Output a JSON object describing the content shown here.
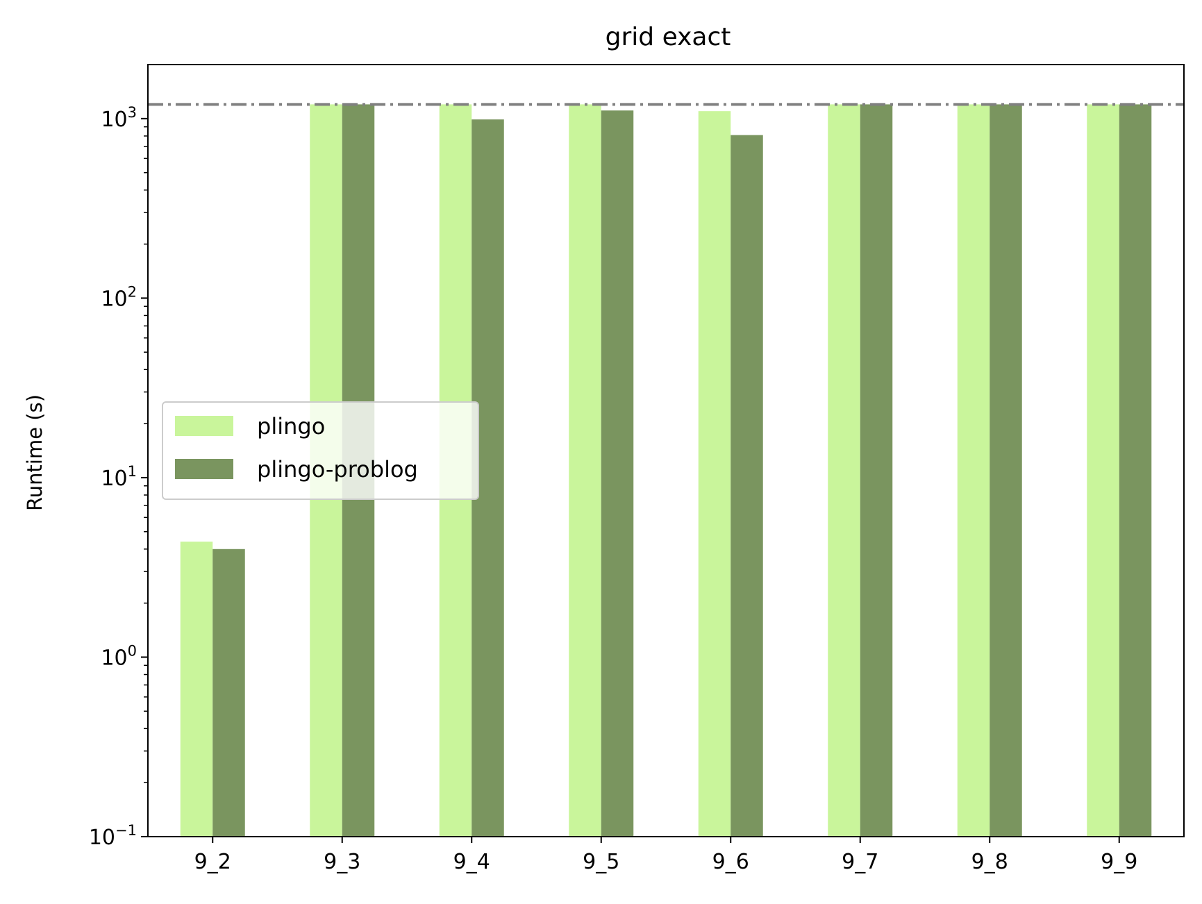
{
  "chart_data": {
    "type": "bar",
    "title": "grid exact",
    "xlabel": "",
    "ylabel": "Runtime (s)",
    "yscale": "log",
    "ylim": [
      0.1,
      2000
    ],
    "yticks": [
      {
        "value": 0.1,
        "base": "10",
        "exp": "−1"
      },
      {
        "value": 1,
        "base": "10",
        "exp": "0"
      },
      {
        "value": 10,
        "base": "10",
        "exp": "1"
      },
      {
        "value": 100,
        "base": "10",
        "exp": "2"
      },
      {
        "value": 1000,
        "base": "10",
        "exp": "3"
      }
    ],
    "categories": [
      "9_2",
      "9_3",
      "9_4",
      "9_5",
      "9_6",
      "9_7",
      "9_8",
      "9_9"
    ],
    "series": [
      {
        "name": "plingo",
        "color": "#c9f59b",
        "values": [
          4.4,
          1200,
          1200,
          1200,
          1100,
          1200,
          1200,
          1200
        ]
      },
      {
        "name": "plingo-problog",
        "color": "#7a955f",
        "values": [
          4.0,
          1200,
          990,
          1110,
          810,
          1200,
          1200,
          1200
        ]
      }
    ],
    "reference_line": {
      "value": 1200,
      "style": "dash-dot",
      "color": "#808080"
    },
    "legend": {
      "position": "center-left"
    },
    "grid": false
  }
}
